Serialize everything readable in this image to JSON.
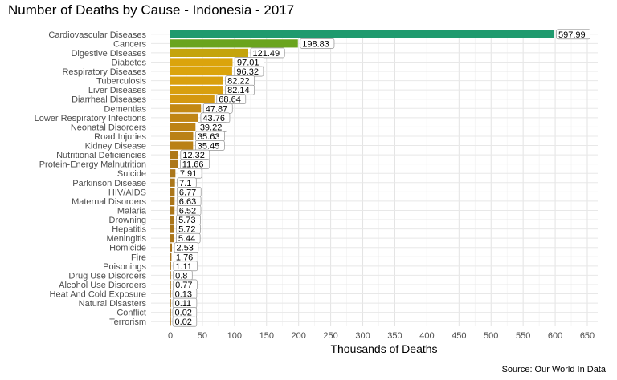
{
  "chart_data": {
    "type": "bar",
    "orientation": "horizontal",
    "title": "Number of Deaths by Cause - Indonesia - 2017",
    "xlabel": "Thousands of Deaths",
    "ylabel": "",
    "caption": "Source: Our World In Data",
    "xlim": [
      0,
      650
    ],
    "xticks": [
      0,
      50,
      100,
      150,
      200,
      250,
      300,
      350,
      400,
      450,
      500,
      550,
      600,
      650
    ],
    "grid": true,
    "legend": "none",
    "categories": [
      "Cardiovascular Diseases",
      "Cancers",
      "Digestive Diseases",
      "Diabetes",
      "Respiratory Diseases",
      "Tuberculosis",
      "Liver Diseases",
      "Diarrheal Diseases",
      "Dementias",
      "Lower Respiratory Infections",
      "Neonatal Disorders",
      "Road Injuries",
      "Kidney Disease",
      "Nutritional Deficiencies",
      "Protein-Energy Malnutrition",
      "Suicide",
      "Parkinson Disease",
      "HIV/AIDS",
      "Maternal Disorders",
      "Malaria",
      "Drowning",
      "Hepatitis",
      "Meningitis",
      "Homicide",
      "Fire",
      "Poisonings",
      "Drug Use Disorders",
      "Alcohol Use Disorders",
      "Heat And Cold Exposure",
      "Natural Disasters",
      "Conflict",
      "Terrorism"
    ],
    "values": [
      597.99,
      198.83,
      121.49,
      97.01,
      96.32,
      82.22,
      82.14,
      68.64,
      47.87,
      43.76,
      39.22,
      35.63,
      35.45,
      12.32,
      11.66,
      7.91,
      7.1,
      6.77,
      6.63,
      6.52,
      5.73,
      5.72,
      5.44,
      2.53,
      1.76,
      1.11,
      0.8,
      0.77,
      0.13,
      0.11,
      0.02,
      0.02
    ],
    "value_labels": [
      "597.99",
      "198.83",
      "121.49",
      "97.01",
      "96.32",
      "82.22",
      "82.14",
      "68.64",
      "47.87",
      "43.76",
      "39.22",
      "35.63",
      "35.45",
      "12.32",
      "11.66",
      "7.91",
      "7.1",
      "6.77",
      "6.63",
      "6.52",
      "5.73",
      "5.72",
      "5.44",
      "2.53",
      "1.76",
      "1.11",
      "0.8",
      "0.77",
      "0.13",
      "0.11",
      "0.02",
      "0.02"
    ],
    "colors": [
      "#1f9a6e",
      "#6aa41e",
      "#c4a40c",
      "#dba40c",
      "#dba40c",
      "#d9a00e",
      "#d89f0f",
      "#d49810",
      "#c38813",
      "#c08514",
      "#bd8315",
      "#ba8116",
      "#ba8116",
      "#ae7819",
      "#ad7719",
      "#ab761a",
      "#ab761a",
      "#ab761a",
      "#ab761a",
      "#ab761a",
      "#aa751a",
      "#aa751a",
      "#aa751a",
      "#a9741a",
      "#a9741a",
      "#a9741a",
      "#a9741a",
      "#a9741a",
      "#a9741a",
      "#a9741a",
      "#a9741a",
      "#a9741a"
    ]
  }
}
